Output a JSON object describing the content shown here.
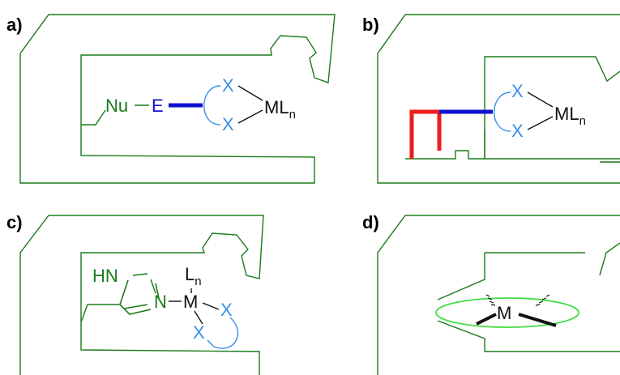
{
  "colors": {
    "pocket": "#1a7a1a",
    "ligand": "#3a8ee6",
    "linker_blue": "#1010d0",
    "linker_red": "#ee1c1c",
    "metal_text": "#111111",
    "ellipse": "#44dd44"
  },
  "panels": {
    "a": {
      "label": "a)",
      "nu": "Nu",
      "e": "E",
      "x1": "X",
      "x2": "X",
      "ml": "ML",
      "ml_sub": "n"
    },
    "b": {
      "label": "b)",
      "x1": "X",
      "x2": "X",
      "ml": "ML",
      "ml_sub": "n"
    },
    "c": {
      "label": "c)",
      "hn": "HN",
      "n": "N",
      "m": "M",
      "l": "L",
      "l_sub": "n",
      "x1": "X",
      "x2": "X"
    },
    "d": {
      "label": "d)",
      "m": "M"
    }
  }
}
